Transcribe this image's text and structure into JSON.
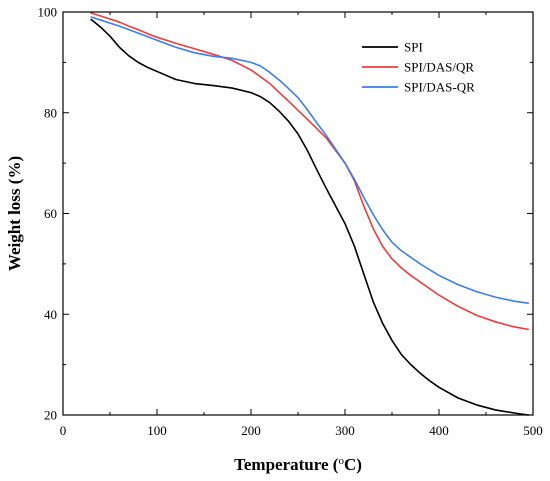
{
  "chart_data": {
    "type": "line",
    "xlabel": "Temperature (",
    "xlabel_sup": "o",
    "xlabel_unit": "C)",
    "ylabel": "Weight loss (%)",
    "xlim": [
      0,
      500
    ],
    "ylim": [
      20,
      100
    ],
    "xticks": [
      "0",
      "100",
      "200",
      "300",
      "400",
      "500"
    ],
    "yticks": [
      "20",
      "40",
      "60",
      "80",
      "100"
    ],
    "grid": false,
    "legend_position": "top-right",
    "series": [
      {
        "name": "SPI",
        "color": "#000000",
        "x": [
          30,
          40,
          50,
          60,
          70,
          80,
          90,
          100,
          120,
          140,
          160,
          180,
          200,
          210,
          220,
          230,
          240,
          250,
          260,
          270,
          280,
          290,
          300,
          310,
          320,
          330,
          340,
          350,
          360,
          370,
          380,
          390,
          400,
          420,
          440,
          460,
          480,
          495
        ],
        "y": [
          98.5,
          97.0,
          95.2,
          93.0,
          91.3,
          90.0,
          89.0,
          88.2,
          86.6,
          85.8,
          85.4,
          84.9,
          84.0,
          83.2,
          82.0,
          80.3,
          78.3,
          75.8,
          72.5,
          68.7,
          65.0,
          61.5,
          58.0,
          53.5,
          48.0,
          42.5,
          38.2,
          34.8,
          32.0,
          30.0,
          28.3,
          26.8,
          25.5,
          23.4,
          22.0,
          21.0,
          20.4,
          20.0
        ]
      },
      {
        "name": "SPI/DAS/QR",
        "color": "#ee3b3b",
        "x": [
          30,
          40,
          50,
          60,
          70,
          80,
          90,
          100,
          120,
          140,
          160,
          180,
          200,
          220,
          240,
          260,
          280,
          300,
          310,
          320,
          330,
          340,
          350,
          360,
          370,
          380,
          400,
          420,
          440,
          460,
          480,
          495
        ],
        "y": [
          99.8,
          99.2,
          98.6,
          98.0,
          97.2,
          96.5,
          95.7,
          95.0,
          93.8,
          92.7,
          91.6,
          90.4,
          88.5,
          85.8,
          82.3,
          78.7,
          75.0,
          70.0,
          66.5,
          61.5,
          57.0,
          53.5,
          51.0,
          49.2,
          47.7,
          46.4,
          43.8,
          41.6,
          39.8,
          38.5,
          37.5,
          37.0
        ]
      },
      {
        "name": "SPI/DAS-QR",
        "color": "#3a7ee8",
        "x": [
          30,
          40,
          50,
          60,
          70,
          80,
          90,
          100,
          120,
          140,
          160,
          180,
          200,
          210,
          220,
          230,
          240,
          250,
          260,
          270,
          280,
          290,
          300,
          310,
          320,
          330,
          340,
          350,
          360,
          380,
          400,
          420,
          440,
          460,
          480,
          495
        ],
        "y": [
          99.0,
          98.4,
          97.8,
          97.2,
          96.5,
          95.8,
          95.1,
          94.4,
          93.0,
          91.9,
          91.2,
          90.8,
          90.0,
          89.3,
          88.0,
          86.5,
          84.8,
          83.0,
          80.6,
          78.0,
          75.5,
          72.8,
          70.0,
          66.8,
          63.2,
          59.8,
          56.8,
          54.3,
          52.6,
          50.0,
          47.7,
          45.9,
          44.5,
          43.4,
          42.6,
          42.2
        ]
      }
    ]
  }
}
